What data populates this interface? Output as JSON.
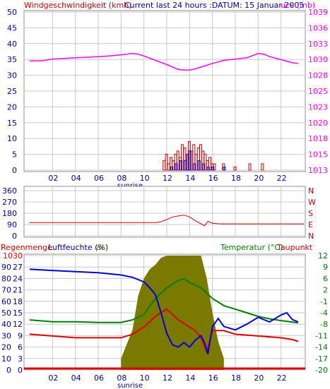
{
  "header": {
    "left_title": "Windgeschwindigkeit (kmh)",
    "center_title": "Current last 24 hours :DATUM: 15 Januar 2005",
    "right_title": "uck (mb)"
  },
  "colors": {
    "wind": "#d40000",
    "gust": "#0000e0",
    "pressure": "#ff00ff",
    "direction": "#d40000",
    "temperature": "#008000",
    "dewpoint": "#e00000",
    "humidity": "#0000e0",
    "rain": "#7a7a00",
    "grid": "#c8c8c8",
    "axis_blue": "#0000aa"
  },
  "x_ticks": [
    "02",
    "04",
    "06",
    "08",
    "10",
    "12",
    "14",
    "16",
    "18",
    "20",
    "22"
  ],
  "sunrise_label": "sunrise",
  "panel1": {
    "left_ticks": [
      "50",
      "45",
      "40",
      "35",
      "30",
      "25",
      "20",
      "15",
      "10",
      "5",
      "0"
    ],
    "right_ticks": [
      "1039",
      "1036",
      "1033",
      "1030",
      "1028",
      "1025",
      "1023",
      "1020",
      "1018",
      "1015",
      "1013"
    ]
  },
  "panel2": {
    "left_ticks": [
      "360",
      "270",
      "180",
      "90",
      "0"
    ],
    "right_ticks": [
      "N",
      "W",
      "S",
      "E",
      "N"
    ]
  },
  "panel3": {
    "label_rain": "Regenmenge",
    "label_humidity": "Luftfeuchte (%)",
    "label_rain_overlap": "(l)",
    "label_bar_tail": "ar",
    "label_temperature": "Temperatur (°C)",
    "label_dewpoint": "Taupunkt",
    "rain_ticks": [
      "10",
      "9",
      "8",
      "7",
      "6",
      "5",
      "4",
      "3",
      "2",
      "1",
      "0"
    ],
    "humidity_ticks": [
      "100",
      "90",
      "80",
      "70",
      "60",
      "50",
      "40",
      "30",
      "20",
      "10",
      "0"
    ],
    "mid_ticks": [
      "30",
      "27",
      "24",
      "21",
      "18",
      "15",
      "12",
      "9",
      "6",
      "3",
      "0"
    ],
    "right_ticks": [
      "12",
      "9",
      "6",
      "2",
      "-1",
      "-4",
      "-8",
      "-11",
      "-14",
      "-17",
      "-20"
    ]
  },
  "chart_data": [
    {
      "type": "line",
      "title": "Current last 24 hours :DATUM: 15 Januar 2005",
      "x_unit_hint": "hour of day",
      "xlim": [
        0,
        24
      ],
      "series": [
        {
          "name": "Windgeschwindigkeit (kmh)",
          "type": "bar",
          "x": [
            11.8,
            12.0,
            12.2,
            12.4,
            12.6,
            12.8,
            13.0,
            13.2,
            13.4,
            13.6,
            13.8,
            14.0,
            14.2,
            14.4,
            14.6,
            14.8,
            15.0,
            15.2,
            15.4,
            15.6,
            15.8,
            16.0,
            16.2,
            17.0,
            18.0,
            19.3,
            20.4
          ],
          "values": [
            3,
            5,
            2,
            4,
            3,
            5,
            6,
            4,
            8,
            7,
            5,
            9,
            6,
            8,
            5,
            7,
            8,
            6,
            5,
            3,
            4,
            2,
            2,
            2,
            1,
            2,
            2
          ]
        },
        {
          "type": "bar",
          "x": [
            12.4,
            12.8,
            13.2,
            13.6,
            13.8,
            14.0,
            14.4,
            14.8,
            15.2,
            15.6,
            16.0,
            17.0
          ],
          "values": [
            1,
            2,
            3,
            3,
            5,
            6,
            2,
            3,
            2,
            1,
            1,
            1
          ]
        },
        {
          "name": "uck (mb)",
          "x": [
            0,
            1,
            2,
            3,
            4,
            5,
            6,
            7,
            8,
            9,
            9.5,
            10,
            11,
            12,
            13,
            13.5,
            14,
            14.5,
            15,
            16,
            17,
            18,
            19,
            20,
            20.5,
            21,
            22,
            23,
            23.5
          ],
          "values": [
            1030.8,
            1030.8,
            1031.1,
            1031.2,
            1031.3,
            1031.4,
            1031.5,
            1031.6,
            1031.8,
            1032.0,
            1031.9,
            1031.6,
            1030.9,
            1030.2,
            1029.4,
            1029.3,
            1029.3,
            1029.5,
            1029.8,
            1030.4,
            1030.9,
            1031.1,
            1031.3,
            1032.0,
            1031.9,
            1031.5,
            1031.0,
            1030.5,
            1030.4
          ]
        }
      ],
      "left_axis": {
        "ylim": [
          0,
          50
        ]
      },
      "right_axis": {
        "ylim": [
          1013,
          1039
        ]
      }
    },
    {
      "type": "line",
      "xlim": [
        0,
        24
      ],
      "ylim": [
        0,
        360
      ],
      "series": [
        {
          "x": [
            0,
            2,
            4,
            6,
            8,
            10,
            11,
            11.5,
            12,
            12.5,
            13,
            13.5,
            14,
            14.5,
            15,
            15.3,
            15.6,
            16,
            16.5,
            17,
            18,
            20,
            22,
            24
          ],
          "values": [
            105,
            105,
            105,
            105,
            105,
            105,
            106,
            112,
            130,
            150,
            158,
            165,
            150,
            120,
            95,
            80,
            115,
            100,
            96,
            95,
            95,
            95,
            95,
            95
          ]
        }
      ]
    },
    {
      "type": "line",
      "xlim": [
        0,
        24
      ],
      "series": [
        {
          "name": "Luftfeuchte (%)",
          "x": [
            0,
            2,
            4,
            6,
            8,
            9,
            10,
            10.5,
            11,
            11.5,
            12,
            12.5,
            13,
            13.5,
            14,
            14.5,
            15,
            15.3,
            15.6,
            16,
            16.5,
            17,
            18,
            19,
            20,
            21,
            22,
            22.5,
            23,
            23.5
          ],
          "values": [
            88,
            87,
            86,
            85,
            83,
            81,
            77,
            72,
            66,
            50,
            32,
            22,
            20,
            24,
            20,
            26,
            30,
            24,
            14,
            38,
            45,
            38,
            35,
            40,
            46,
            42,
            48,
            50,
            44,
            42
          ]
        },
        {
          "name": "Temperatur (°C)",
          "x": [
            0,
            2,
            4,
            6,
            8,
            9,
            10,
            11,
            12,
            13,
            13.5,
            14,
            15,
            16,
            17,
            18,
            19,
            20,
            21,
            22,
            23,
            23.5
          ],
          "values": [
            -6,
            -6.5,
            -6.5,
            -6.7,
            -6.7,
            -6,
            -4.5,
            0,
            3,
            5,
            5.5,
            4.5,
            3,
            0,
            -2,
            -3,
            -4,
            -5,
            -5.7,
            -6.2,
            -6.6,
            -6.8
          ]
        },
        {
          "name": "Taupunkt",
          "x": [
            0,
            2,
            4,
            6,
            8,
            9,
            10,
            11,
            12,
            13,
            13.5,
            14,
            14.5,
            15,
            15.5,
            16,
            17,
            18,
            20,
            22,
            23,
            23.5
          ],
          "values": [
            -10,
            -10.5,
            -11,
            -11,
            -11,
            -10,
            -8,
            -5,
            -3,
            -6,
            -7,
            -8,
            -9,
            -11,
            -15,
            -9,
            -9,
            -10,
            -10.5,
            -11,
            -11.5,
            -12
          ]
        },
        {
          "name": "Regenmenge",
          "type": "area",
          "x": [
            8,
            9,
            9.5,
            10,
            10.5,
            11,
            11.5,
            12,
            13,
            13.5,
            14,
            15,
            15.5,
            16,
            16.5,
            17
          ],
          "values": [
            1.0,
            3.5,
            6.5,
            8.0,
            8.8,
            9.2,
            9.8,
            10,
            10,
            10,
            10,
            10,
            8,
            5,
            2.5,
            1.0
          ]
        }
      ],
      "left_axis": {
        "ylim": [
          0,
          100
        ]
      },
      "right_axis": {
        "ylim": [
          -20,
          12
        ]
      }
    }
  ]
}
